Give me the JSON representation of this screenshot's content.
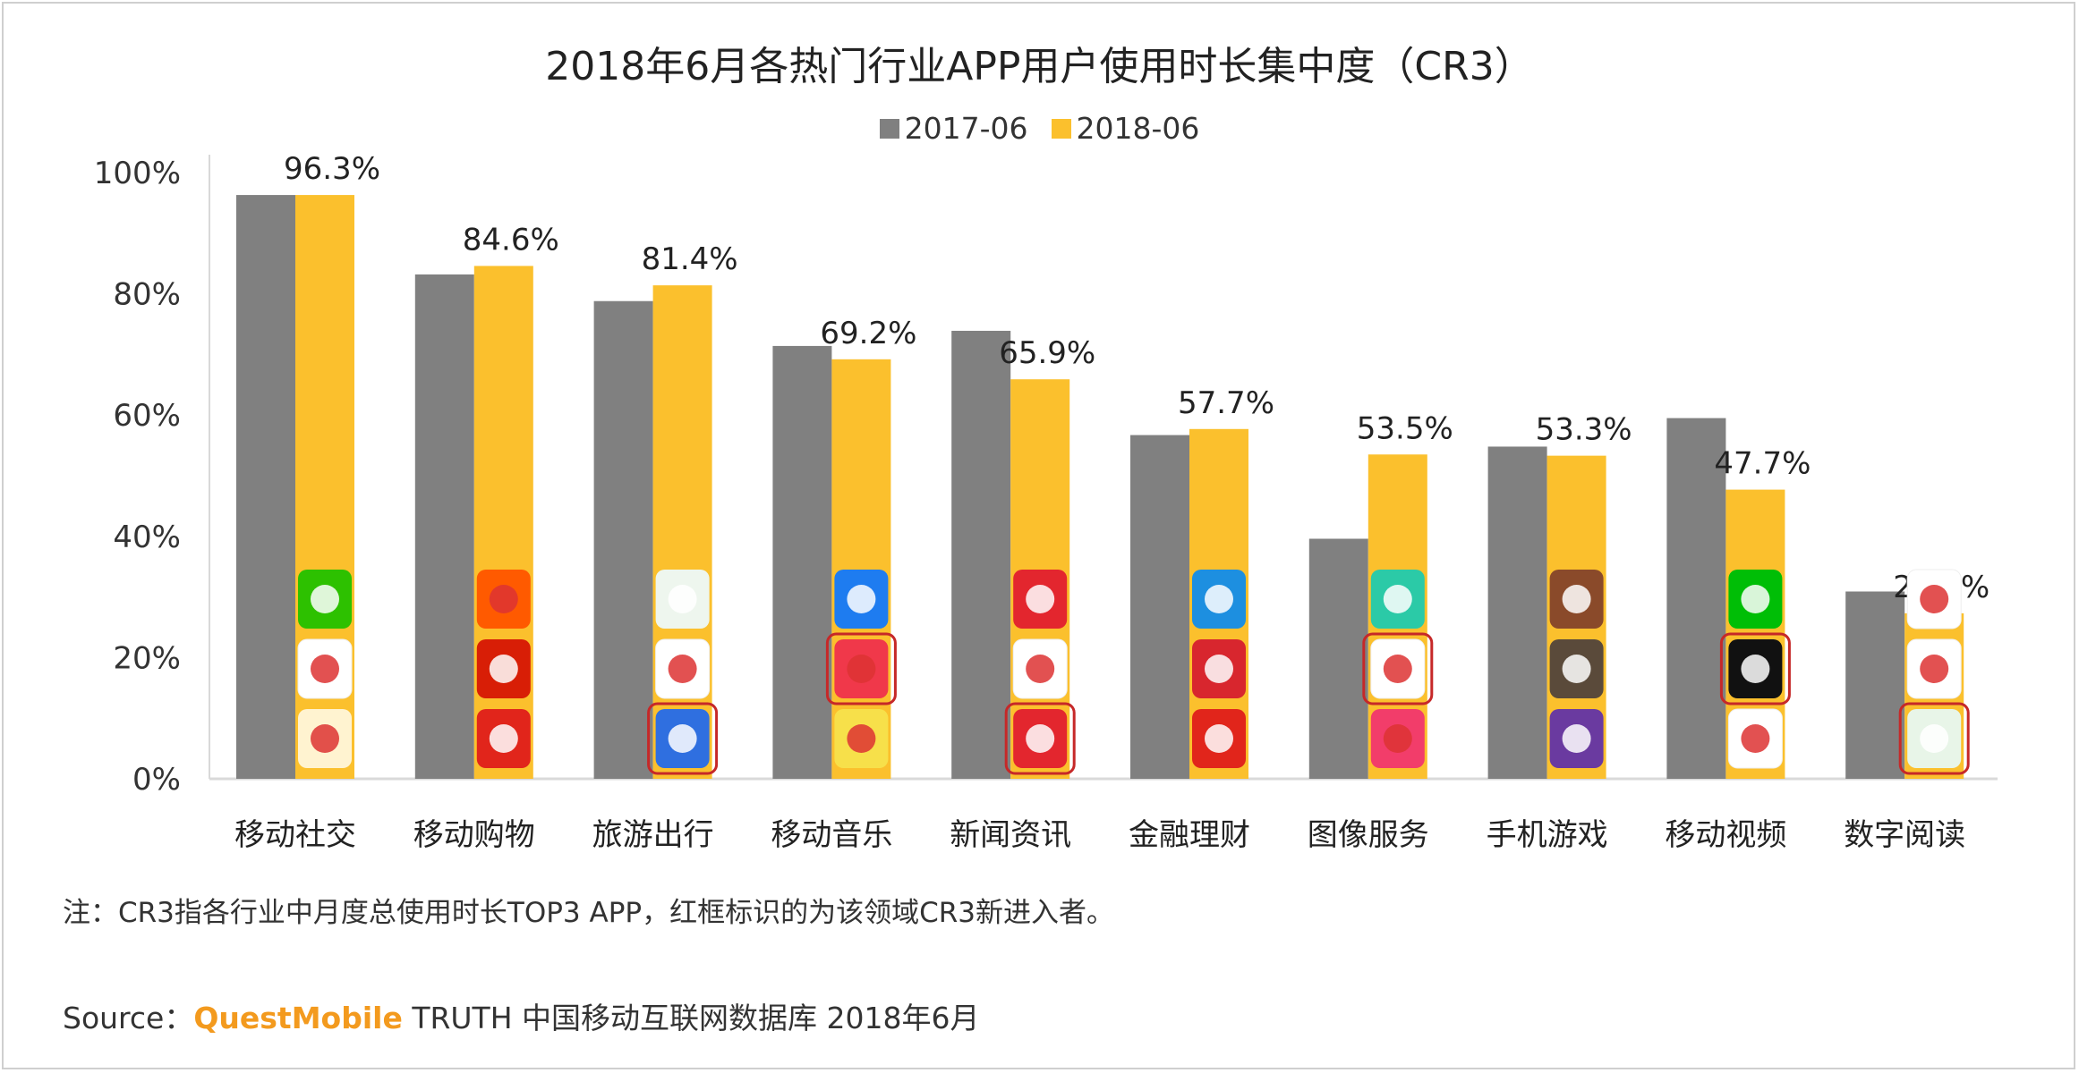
{
  "title": "2018年6月各热门行业APP用户使用时长集中度（CR3）",
  "note": "注：CR3指各行业中月度总使用时长TOP3 APP，红框标识的为该领域CR3新进入者。",
  "source": {
    "prefix": "Source：",
    "brand": "QuestMobile",
    "rest": " TRUTH 中国移动互联网数据库 2018年6月"
  },
  "colors": {
    "series_2017": "#808080",
    "series_2018": "#fbc02d",
    "new_entrant_frame": "#c62828",
    "axis": "#d9d9d9"
  },
  "chart_data": {
    "type": "bar",
    "title": "2018年6月各热门行业APP用户使用时长集中度（CR3）",
    "xlabel": "",
    "ylabel": "",
    "ylim": [
      0,
      100
    ],
    "y_ticks": [
      "0%",
      "20%",
      "40%",
      "60%",
      "80%",
      "100%"
    ],
    "grid": false,
    "legend": "top",
    "categories": [
      "移动社交",
      "移动购物",
      "旅游出行",
      "移动音乐",
      "新闻资讯",
      "金融理财",
      "图像服务",
      "手机游戏",
      "移动视频",
      "数字阅读"
    ],
    "series": [
      {
        "name": "2017-06",
        "values": [
          96.3,
          83.2,
          78.8,
          71.4,
          73.9,
          56.7,
          39.6,
          54.8,
          59.5,
          30.9
        ]
      },
      {
        "name": "2018-06",
        "values": [
          96.3,
          84.6,
          81.4,
          69.2,
          65.9,
          57.7,
          53.5,
          53.3,
          47.7,
          27.3
        ],
        "labels": [
          "96.3%",
          "84.6%",
          "81.4%",
          "69.2%",
          "65.9%",
          "57.7%",
          "53.5%",
          "53.3%",
          "47.7%",
          "27.3%"
        ]
      }
    ],
    "top3_app_icons": [
      [
        {
          "icon": "wechat",
          "color": "#2dc100",
          "new": false
        },
        {
          "icon": "qq-penguin",
          "color": "#ffffff",
          "new": false
        },
        {
          "icon": "weibo",
          "color": "#fff3d0",
          "new": false
        }
      ],
      [
        {
          "icon": "taobao",
          "color": "#ff5a00",
          "new": false
        },
        {
          "icon": "heart-pattern",
          "color": "#d81e06",
          "new": false
        },
        {
          "icon": "jd-dog",
          "color": "#e1251b",
          "new": false
        }
      ],
      [
        {
          "icon": "paper-plane-map",
          "color": "#eef6ee",
          "new": false
        },
        {
          "icon": "du-map-pin",
          "color": "#ffffff",
          "new": false
        },
        {
          "icon": "map-navigation",
          "color": "#2f6fe0",
          "new": true
        }
      ],
      [
        {
          "icon": "k-circle",
          "color": "#1e7cf0",
          "new": false
        },
        {
          "icon": "karaoke-bird",
          "color": "#f0384a",
          "new": true
        },
        {
          "icon": "music-note",
          "color": "#f7e04a",
          "new": false
        }
      ],
      [
        {
          "icon": "toutiao",
          "color": "#e3262e",
          "new": false
        },
        {
          "icon": "news-circle",
          "color": "#ffffff",
          "new": false
        },
        {
          "icon": "toutiao-lite",
          "color": "#e3262e",
          "new": true
        }
      ],
      [
        {
          "icon": "alipay",
          "color": "#1d8fe0",
          "new": false
        },
        {
          "icon": "stock-chart",
          "color": "#d8262e",
          "new": false
        },
        {
          "icon": "jd-finance",
          "color": "#e1251b",
          "new": false
        }
      ],
      [
        {
          "icon": "panda-camera",
          "color": "#2bcaa7",
          "new": false
        },
        {
          "icon": "mountain-picture",
          "color": "#ffffff",
          "new": true
        },
        {
          "icon": "meitu",
          "color": "#f23d6a",
          "new": false
        }
      ],
      [
        {
          "icon": "game-hero",
          "color": "#8a4a2a",
          "new": false
        },
        {
          "icon": "game-soldier",
          "color": "#5a4a3a",
          "new": false
        },
        {
          "icon": "game-puzzle",
          "color": "#6a3aa0",
          "new": false
        }
      ],
      [
        {
          "icon": "iqiyi",
          "color": "#00be06",
          "new": false
        },
        {
          "icon": "douyin-note",
          "color": "#111111",
          "new": true
        },
        {
          "icon": "play-triangle",
          "color": "#ffffff",
          "new": false
        }
      ],
      [
        {
          "icon": "qq-reader",
          "color": "#ffffff",
          "new": false
        },
        {
          "icon": "book-pages",
          "color": "#ffffff",
          "new": false
        },
        {
          "icon": "novel-book",
          "color": "#e8f5e8",
          "new": true
        }
      ]
    ]
  }
}
